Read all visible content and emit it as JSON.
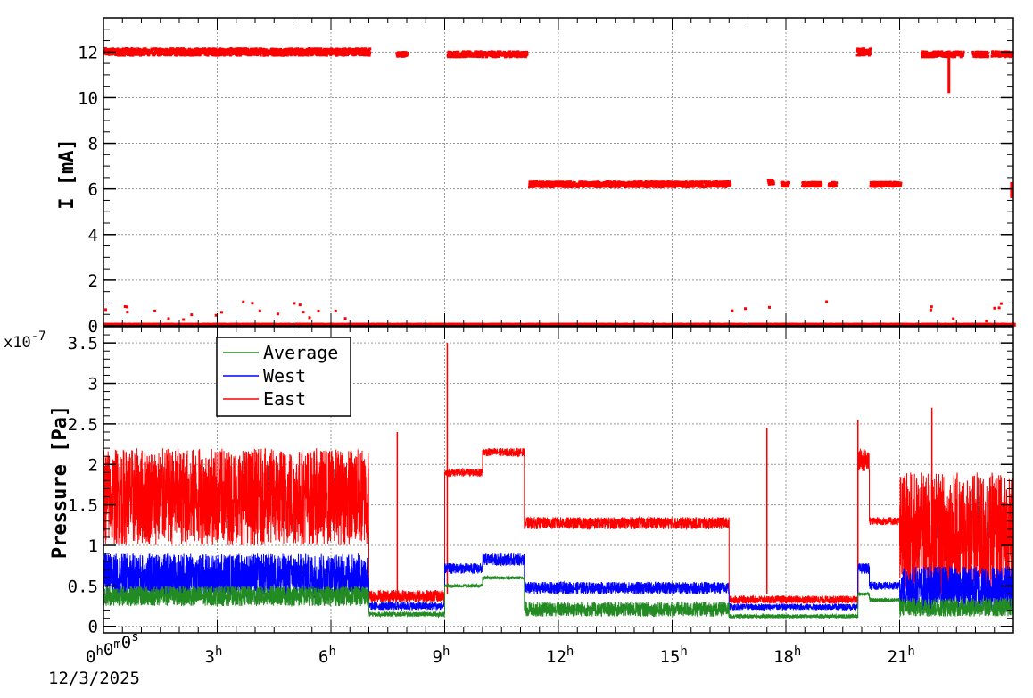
{
  "chart_data": [
    {
      "id": "current",
      "type": "scatter",
      "ylabel": "I [mA]",
      "ylim": [
        0,
        13.5
      ],
      "yticks": [
        "0",
        "2",
        "4",
        "6",
        "8",
        "10",
        "12"
      ],
      "xlim_hours": [
        0,
        24
      ],
      "grid": true,
      "marker_color": "#ff0000",
      "segments": [
        {
          "x0": 0.0,
          "x1": 7.0,
          "level": 12.0,
          "noise": 0.15
        },
        {
          "x0": 7.7,
          "x1": 8.0,
          "level": 11.9,
          "noise": 0.1
        },
        {
          "x0": 9.05,
          "x1": 11.15,
          "level": 11.9,
          "noise": 0.12
        },
        {
          "x0": 11.2,
          "x1": 16.5,
          "level": 6.2,
          "noise": 0.12
        },
        {
          "x0": 17.5,
          "x1": 17.65,
          "level": 6.3,
          "noise": 0.1
        },
        {
          "x0": 17.85,
          "x1": 18.05,
          "level": 6.2,
          "noise": 0.1
        },
        {
          "x0": 18.4,
          "x1": 18.9,
          "level": 6.2,
          "noise": 0.1
        },
        {
          "x0": 19.1,
          "x1": 19.3,
          "level": 6.2,
          "noise": 0.1
        },
        {
          "x0": 19.85,
          "x1": 20.2,
          "level": 12.0,
          "noise": 0.15
        },
        {
          "x0": 20.2,
          "x1": 21.0,
          "level": 6.2,
          "noise": 0.1
        },
        {
          "x0": 21.55,
          "x1": 22.65,
          "level": 11.9,
          "noise": 0.12
        },
        {
          "x0": 22.9,
          "x1": 23.3,
          "level": 11.9,
          "noise": 0.12
        },
        {
          "x0": 23.4,
          "x1": 23.95,
          "level": 11.9,
          "noise": 0.12
        },
        {
          "x0": 0.0,
          "x1": 24.0,
          "level": 0.05,
          "noise": 0.03
        }
      ],
      "dips": [
        {
          "x": 22.3,
          "ymin": 10.2,
          "ymax": 11.8
        },
        {
          "x": 23.95,
          "ymin": 5.6,
          "ymax": 6.3
        }
      ]
    },
    {
      "id": "pressure",
      "type": "line",
      "ylabel": "Pressure [Pa]",
      "yexponent_label": "x10",
      "yexponent": "-7",
      "ylim": [
        -0.08,
        3.7
      ],
      "yticks": [
        "0",
        "0.5",
        "1",
        "1.5",
        "2",
        "2.5",
        "3",
        "3.5"
      ],
      "xlim_hours": [
        0,
        24
      ],
      "xlabel": "",
      "xticks": [
        "3",
        "6",
        "9",
        "12",
        "15",
        "18",
        "21"
      ],
      "xorigin": {
        "h": "0",
        "m": "0",
        "s": "0"
      },
      "date": "12/3/2025",
      "grid": true,
      "legend": {
        "position": "top-left",
        "entries": [
          {
            "name": "Average",
            "color": "#228b22"
          },
          {
            "name": "West",
            "color": "#0000ff"
          },
          {
            "name": "East",
            "color": "#ff0000"
          }
        ]
      },
      "series": [
        {
          "name": "East",
          "color": "#ff0000",
          "segments": [
            {
              "x0": 0.0,
              "x1": 7.0,
              "lo": 1.0,
              "hi": 2.2
            },
            {
              "x0": 7.0,
              "x1": 9.0,
              "lo": 0.3,
              "hi": 0.45
            },
            {
              "x0": 9.0,
              "x1": 10.0,
              "lo": 1.85,
              "hi": 1.95
            },
            {
              "x0": 10.0,
              "x1": 11.1,
              "lo": 2.1,
              "hi": 2.2
            },
            {
              "x0": 11.1,
              "x1": 16.5,
              "lo": 1.2,
              "hi": 1.35
            },
            {
              "x0": 16.5,
              "x1": 19.9,
              "lo": 0.28,
              "hi": 0.38
            },
            {
              "x0": 19.9,
              "x1": 20.2,
              "lo": 1.9,
              "hi": 2.2
            },
            {
              "x0": 20.2,
              "x1": 21.0,
              "lo": 1.25,
              "hi": 1.35
            },
            {
              "x0": 21.0,
              "x1": 24.0,
              "lo": 0.35,
              "hi": 1.9
            }
          ],
          "spikes": [
            {
              "x": 7.75,
              "y": 2.4
            },
            {
              "x": 9.07,
              "y": 3.5
            },
            {
              "x": 17.5,
              "y": 2.45
            },
            {
              "x": 19.9,
              "y": 2.55
            },
            {
              "x": 21.85,
              "y": 2.7
            }
          ]
        },
        {
          "name": "West",
          "color": "#0000ff",
          "segments": [
            {
              "x0": 0.0,
              "x1": 7.0,
              "lo": 0.35,
              "hi": 0.9
            },
            {
              "x0": 7.0,
              "x1": 9.0,
              "lo": 0.2,
              "hi": 0.3
            },
            {
              "x0": 9.0,
              "x1": 10.0,
              "lo": 0.65,
              "hi": 0.78
            },
            {
              "x0": 10.0,
              "x1": 11.1,
              "lo": 0.75,
              "hi": 0.9
            },
            {
              "x0": 11.1,
              "x1": 16.5,
              "lo": 0.4,
              "hi": 0.55
            },
            {
              "x0": 16.5,
              "x1": 19.9,
              "lo": 0.2,
              "hi": 0.28
            },
            {
              "x0": 19.9,
              "x1": 20.2,
              "lo": 0.65,
              "hi": 0.78
            },
            {
              "x0": 20.2,
              "x1": 21.0,
              "lo": 0.45,
              "hi": 0.55
            },
            {
              "x0": 21.0,
              "x1": 24.0,
              "lo": 0.2,
              "hi": 0.75
            }
          ],
          "spikes": []
        },
        {
          "name": "Average",
          "color": "#228b22",
          "segments": [
            {
              "x0": 0.0,
              "x1": 7.0,
              "lo": 0.25,
              "hi": 0.5
            },
            {
              "x0": 7.0,
              "x1": 9.0,
              "lo": 0.12,
              "hi": 0.18
            },
            {
              "x0": 9.0,
              "x1": 10.0,
              "lo": 0.48,
              "hi": 0.52
            },
            {
              "x0": 10.0,
              "x1": 11.1,
              "lo": 0.58,
              "hi": 0.62
            },
            {
              "x0": 11.1,
              "x1": 16.5,
              "lo": 0.12,
              "hi": 0.3
            },
            {
              "x0": 16.5,
              "x1": 19.9,
              "lo": 0.1,
              "hi": 0.15
            },
            {
              "x0": 19.9,
              "x1": 20.2,
              "lo": 0.38,
              "hi": 0.42
            },
            {
              "x0": 20.2,
              "x1": 21.0,
              "lo": 0.3,
              "hi": 0.35
            },
            {
              "x0": 21.0,
              "x1": 24.0,
              "lo": 0.12,
              "hi": 0.35
            }
          ],
          "spikes": []
        }
      ]
    }
  ]
}
